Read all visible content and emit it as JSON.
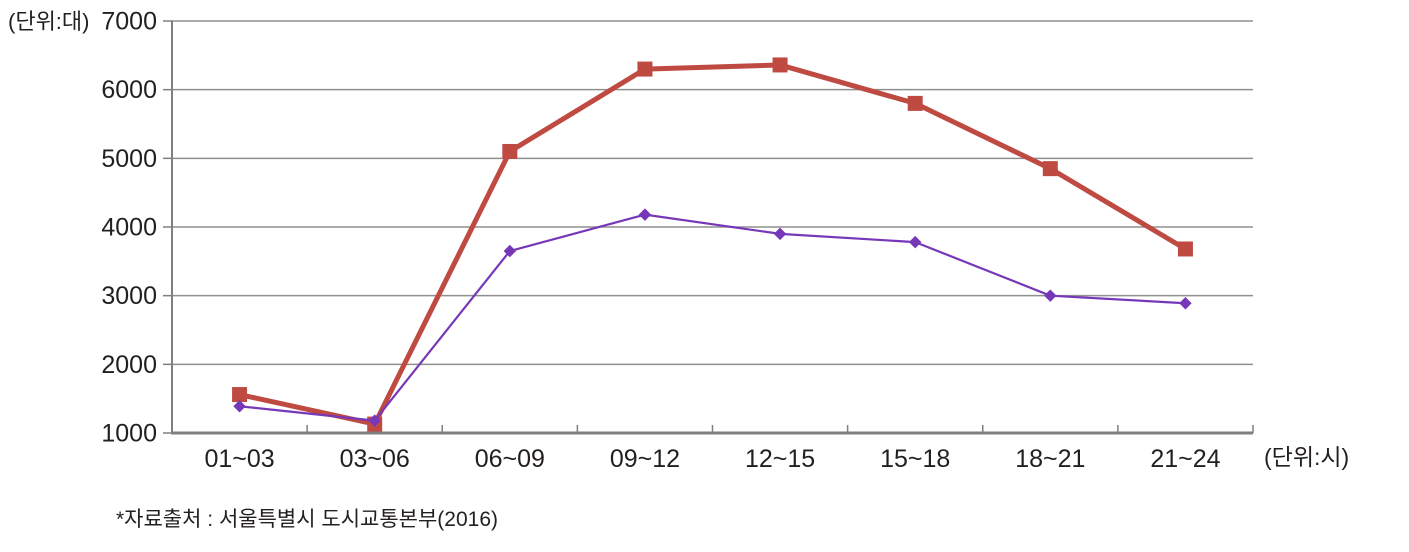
{
  "chart_data": {
    "type": "line",
    "title": "",
    "y_unit_label": "(단위:대)",
    "x_unit_label": "(단위:시)",
    "source_note": "*자료출처 : 서울특별시 도시교통본부(2016)",
    "categories": [
      "01~03",
      "03~06",
      "06~09",
      "09~12",
      "12~15",
      "15~18",
      "18~21",
      "21~24"
    ],
    "series": [
      {
        "name": "red-square-series",
        "marker": "square",
        "color": "#bf4a42",
        "values": [
          1560,
          1130,
          5100,
          6300,
          6360,
          5800,
          4850,
          3680
        ]
      },
      {
        "name": "purple-diamond-series",
        "marker": "diamond",
        "color": "#7638b8",
        "values": [
          1390,
          1180,
          3650,
          4180,
          3900,
          3780,
          3000,
          2890
        ]
      }
    ],
    "ylim": [
      1000,
      7000
    ],
    "y_ticks": [
      1000,
      2000,
      3000,
      4000,
      5000,
      6000,
      7000
    ],
    "grid": true,
    "legend": false,
    "colors": {
      "grid": "#8f8f8f",
      "axis": "#7f7f7f",
      "text": "#231f20"
    }
  }
}
